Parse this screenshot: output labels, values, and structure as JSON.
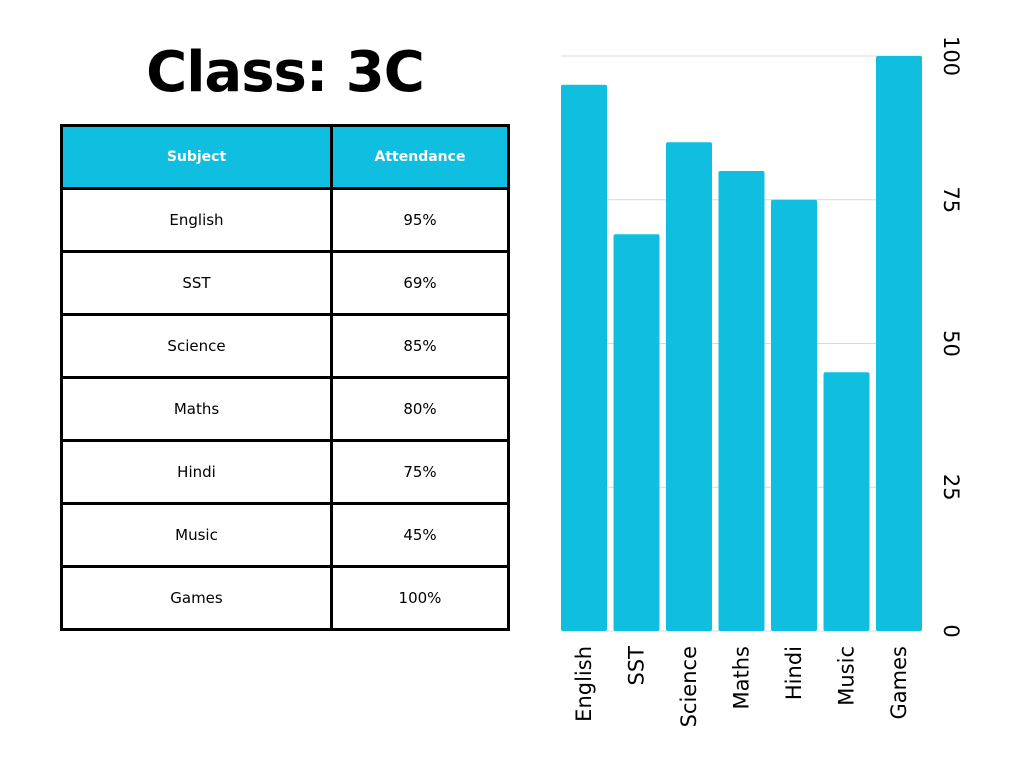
{
  "title": "Class: 3C",
  "table": {
    "headers": [
      "Subject",
      "Attendance"
    ],
    "rows": [
      [
        "English",
        "95%"
      ],
      [
        "SST",
        "69%"
      ],
      [
        "Science",
        "85%"
      ],
      [
        "Maths",
        "80%"
      ],
      [
        "Hindi",
        "75%"
      ],
      [
        "Music",
        "45%"
      ],
      [
        "Games",
        "100%"
      ]
    ]
  },
  "colors": {
    "accent": "#10bfe0",
    "grid": "#d9d9d9",
    "text": "#000000"
  },
  "chart_data": {
    "type": "bar",
    "categories": [
      "English",
      "SST",
      "Science",
      "Maths",
      "Hindi",
      "Music",
      "Games"
    ],
    "values": [
      95,
      69,
      85,
      80,
      75,
      45,
      100
    ],
    "title": "",
    "xlabel": "",
    "ylabel": "",
    "ylim": [
      0,
      100
    ],
    "yticks": [
      "0",
      "25",
      "50",
      "75",
      "100"
    ],
    "y_axis_side": "right",
    "grid": true,
    "label_orientation": "vertical"
  }
}
